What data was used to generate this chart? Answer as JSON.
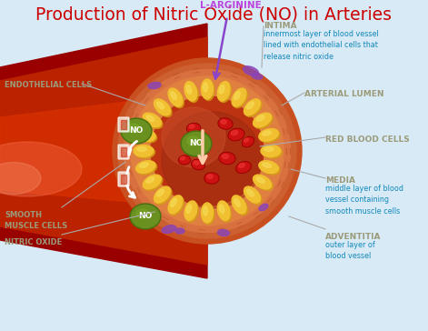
{
  "title": "Production of Nitric Oxide (NO) in Arteries",
  "title_color": "#cc0000",
  "title_fontsize": 13.5,
  "bg_color": "#d8eaf5",
  "labels": {
    "l_arginine": "L-ARGININE",
    "intima_title": "INTIMA",
    "intima_desc": "innermost layer of blood vessel\nlined with endothelial cells that\nrelease nitric oxide",
    "arterial_lumen": "ARTERIAL LUMEN",
    "endothelial_cells": "ENDOTHELIAL CELLS",
    "red_blood_cells": "RED BLOOD CELLS",
    "media_title": "MEDIA",
    "media_desc": "middle layer of blood\nvessel containing\nsmooth muscle cells",
    "adventitia_title": "ADVENTITIA",
    "adventitia_desc": "outer layer of\nblood vessel",
    "smooth_muscle": "SMOOTH\nMUSCLE CELLS",
    "nitric_oxide": "NITRIC OXIDE"
  },
  "colors": {
    "l_arginine_text": "#bb44dd",
    "l_arginine_arrow": "#8844cc",
    "label_title": "#9b9b7b",
    "label_desc": "#1188bb",
    "artery_dark": "#990000",
    "artery_mid": "#bb2200",
    "artery_bright": "#dd3300",
    "artery_highlight": "#ee5533",
    "adventitia": "#c85020",
    "media_outer": "#cc6030",
    "media_inner": "#d87040",
    "media_lines": "#b85828",
    "intima": "#e08040",
    "lumen_dark": "#9b2a10",
    "lumen_mid": "#bb3311",
    "lumen_light": "#cc5533",
    "yellow_cells": "#f0c030",
    "yellow_shadow": "#d4a010",
    "green_no_dark": "#4a7010",
    "green_no_mid": "#6a9020",
    "green_no_light": "#7aaa28",
    "red_blood_dark": "#990000",
    "red_blood_mid": "#cc1111",
    "red_blood_highlight": "#ee3333",
    "purple_spots": "#8844bb",
    "no_down_arrow": "#ffccaa",
    "white_arrows": "#ffffff",
    "connector_line": "#aaaaaa"
  }
}
